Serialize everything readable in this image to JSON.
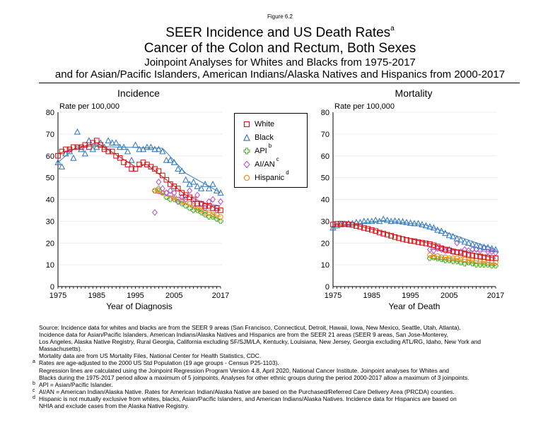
{
  "header": {
    "figure_label": "Figure 6.2",
    "title_line1": "SEER Incidence and US Death Rates",
    "title_sup": "a",
    "title_line2": "Cancer of the Colon and Rectum, Both Sexes",
    "subtitle_line1": "Joinpoint Analyses for Whites and Blacks from 1975-2017",
    "subtitle_line2": "and for Asian/Pacific Islanders, American Indians/Alaska Natives and Hispanics from 2000-2017"
  },
  "legend": [
    {
      "label": "White",
      "sup": "",
      "marker": "square",
      "color": "#d7191c"
    },
    {
      "label": "Black",
      "sup": "",
      "marker": "triangle",
      "color": "#3a7dbf"
    },
    {
      "label": "API",
      "sup": "b",
      "marker": "plus",
      "color": "#4dac26"
    },
    {
      "label": "AI/AN",
      "sup": "c",
      "marker": "diamond",
      "color": "#b360c9"
    },
    {
      "label": "Hispanic",
      "sup": "d",
      "marker": "circle",
      "color": "#f28e1c"
    }
  ],
  "chart_data": [
    {
      "type": "scatter",
      "title": "Incidence",
      "xlabel": "Year of Diagnosis",
      "ylabel": "Rate per 100,000",
      "xlim": [
        1975,
        2017
      ],
      "ylim": [
        0,
        80
      ],
      "xticks": [
        1975,
        1985,
        1995,
        2005,
        2017
      ],
      "yticks": [
        0,
        10,
        20,
        30,
        40,
        50,
        60,
        70,
        80
      ],
      "grid": true,
      "series": [
        {
          "name": "White",
          "x_start": 1975,
          "values": [
            60,
            62,
            63,
            63,
            64,
            64,
            64,
            65,
            64,
            66,
            67,
            65,
            63,
            62,
            62,
            60,
            59,
            57,
            56,
            54,
            54,
            56,
            57,
            56,
            55,
            54,
            53,
            51,
            49,
            47,
            46,
            45,
            43,
            42,
            41,
            40,
            38,
            38,
            37,
            37,
            36,
            36,
            35
          ],
          "fit": [
            [
              1975,
              61
            ],
            [
              1985,
              66
            ],
            [
              1995,
              55
            ],
            [
              1998,
              56
            ],
            [
              2008,
              42
            ],
            [
              2017,
              35
            ]
          ]
        },
        {
          "name": "Black",
          "x_start": 1975,
          "values": [
            57,
            55,
            61,
            62,
            59,
            71,
            63,
            61,
            67,
            63,
            64,
            66,
            64,
            67,
            66,
            66,
            64,
            64,
            62,
            58,
            65,
            63,
            63,
            64,
            64,
            63,
            63,
            62,
            58,
            58,
            57,
            54,
            53,
            49,
            47,
            48,
            46,
            45,
            47,
            45,
            47,
            44,
            43
          ],
          "fit": [
            [
              1975,
              57
            ],
            [
              1980,
              64.5
            ],
            [
              2002,
              63.5
            ],
            [
              2008,
              52
            ],
            [
              2017,
              43
            ]
          ]
        },
        {
          "name": "API",
          "x_start": 2000,
          "values": [
            44,
            45,
            43,
            41,
            40,
            40,
            39,
            38,
            37,
            36,
            35,
            35,
            34,
            33,
            32,
            32,
            31,
            30
          ],
          "fit": [
            [
              2000,
              44.5
            ],
            [
              2017,
              30.5
            ]
          ]
        },
        {
          "name": "AI/AN",
          "x_start": 2000,
          "values": [
            34,
            48,
            45,
            43,
            44,
            43,
            39,
            41,
            40,
            44,
            38,
            42,
            38,
            36,
            39,
            40,
            35,
            39
          ],
          "fit": [
            [
              2000,
              43
            ],
            [
              2017,
              37
            ]
          ]
        },
        {
          "name": "Hispanic",
          "x_start": 2000,
          "values": [
            44,
            44,
            43,
            43,
            42,
            41,
            40,
            39,
            39,
            38,
            37,
            36,
            35,
            34,
            34,
            33,
            33,
            32
          ],
          "fit": [
            [
              2000,
              44
            ],
            [
              2017,
              32
            ]
          ]
        }
      ]
    },
    {
      "type": "scatter",
      "title": "Mortality",
      "xlabel": "Year of Death",
      "ylabel": "Rate per 100,000",
      "xlim": [
        1975,
        2017
      ],
      "ylim": [
        0,
        80
      ],
      "xticks": [
        1975,
        1985,
        1995,
        2005,
        2017
      ],
      "yticks": [
        0,
        10,
        20,
        30,
        40,
        50,
        60,
        70,
        80
      ],
      "grid": true,
      "series": [
        {
          "name": "White",
          "x_start": 1975,
          "values": [
            28.5,
            28.8,
            28.9,
            28.7,
            28.5,
            28.3,
            27.8,
            27.4,
            26.9,
            26.5,
            26,
            25.5,
            24.8,
            24.3,
            23.8,
            23.3,
            22.7,
            22.2,
            21.8,
            21.4,
            21,
            20.8,
            20.4,
            20.1,
            19.8,
            19.5,
            19,
            18.4,
            17.6,
            17,
            16.6,
            16.1,
            15.8,
            15.4,
            15,
            14.6,
            14.3,
            14,
            13.8,
            13.5,
            13.3,
            13.1,
            13
          ],
          "fit": [
            [
              1975,
              28.5
            ],
            [
              1980,
              28.6
            ],
            [
              2001,
              19.3
            ],
            [
              2017,
              13
            ]
          ]
        },
        {
          "name": "Black",
          "x_start": 1975,
          "values": [
            27,
            28,
            28.5,
            28.8,
            29,
            29,
            29.5,
            29.5,
            30,
            30,
            30,
            30.5,
            30,
            31,
            30.5,
            30,
            30.2,
            30,
            29.8,
            29.5,
            29.2,
            29,
            29,
            28.5,
            28,
            27.5,
            27,
            26,
            25.5,
            24.5,
            23.5,
            23,
            22,
            21.5,
            20.5,
            20,
            19.5,
            19,
            18.5,
            18,
            18,
            17.5,
            17
          ],
          "fit": [
            [
              1975,
              27.5
            ],
            [
              1988,
              30.3
            ],
            [
              1999,
              28.2
            ],
            [
              2004,
              25
            ],
            [
              2017,
              17
            ]
          ]
        },
        {
          "name": "API",
          "x_start": 2000,
          "values": [
            13,
            13.3,
            12.8,
            12.5,
            12,
            12,
            11.5,
            11.5,
            11,
            10.5,
            11,
            10.5,
            10,
            10,
            10,
            10,
            9.5,
            9.5
          ],
          "fit": [
            [
              2000,
              13
            ],
            [
              2017,
              9.5
            ]
          ]
        },
        {
          "name": "AI/AN",
          "x_start": 2000,
          "values": [
            17,
            16.5,
            17.5,
            17,
            16.5,
            17,
            16,
            20,
            16,
            17,
            16.5,
            17,
            17,
            16.5,
            18,
            16,
            16,
            15.5
          ],
          "fit": [
            [
              2000,
              17
            ],
            [
              2017,
              16
            ]
          ]
        },
        {
          "name": "Hispanic",
          "x_start": 2000,
          "values": [
            14.5,
            14,
            14,
            13.5,
            13.5,
            13,
            13,
            13,
            12.5,
            12.5,
            12,
            12,
            12,
            11.5,
            11.5,
            11,
            11,
            11
          ],
          "fit": [
            [
              2000,
              14.3
            ],
            [
              2017,
              10.8
            ]
          ]
        }
      ]
    }
  ],
  "notes": [
    {
      "mark": "",
      "text": "Source:  Incidence data for whites and blacks are from the SEER 9 areas (San Francisco, Connecticut, Detroit, Hawaii, Iowa, New Mexico, Seattle, Utah, Atlanta)."
    },
    {
      "mark": "",
      "text": "Incidence data for Asian/Pacific Islanders, American Indians/Alaska Natives and Hispanics are from the SEER 21 areas (SEER 9 areas, San Jose-Monterey,"
    },
    {
      "mark": "",
      "text": "Los Angeles, Alaska Native Registry, Rural Georgia, California excluding SF/SJM/LA, Kentucky, Louisiana, New Jersey, Georgia excluding ATL/RG, Idaho, New York and"
    },
    {
      "mark": "",
      "text": "Massachusetts)."
    },
    {
      "mark": "",
      "text": "Mortality data are from US Mortality Files, National Center for Health Statistics, CDC."
    },
    {
      "mark": "a",
      "text": "Rates are age-adjusted to the 2000 US Std Population (19 age groups - Census P25-1103)."
    },
    {
      "mark": "",
      "text": "Regression lines are calculated using the Joinpoint Regression Program Version 4.8, April 2020, National Cancer Institute.  Joinpoint analyses for Whites and"
    },
    {
      "mark": "",
      "text": "Blacks during the 1975-2017 period allow a maximum of 5 joinpoints. Analyses for other ethnic groups during the period 2000-2017 allow a maximum of 3 joinpoints."
    },
    {
      "mark": "b",
      "text": "API = Asian/Pacific Islander."
    },
    {
      "mark": "c",
      "text": "AI/AN = American Indian/Alaska Native.  Rates for American Indian/Alaska Native are based on the Purchased/Referred Care Delivery Area (PRCDA) counties."
    },
    {
      "mark": "d",
      "text": "Hispanic is not mutually exclusive from whites, blacks, Asian/Pacific Islanders, and American Indians/Alaska Natives.  Incidence data for Hispanics are based on"
    },
    {
      "mark": "",
      "text": "NHIA and exclude cases from the Alaska Native Registry."
    }
  ]
}
